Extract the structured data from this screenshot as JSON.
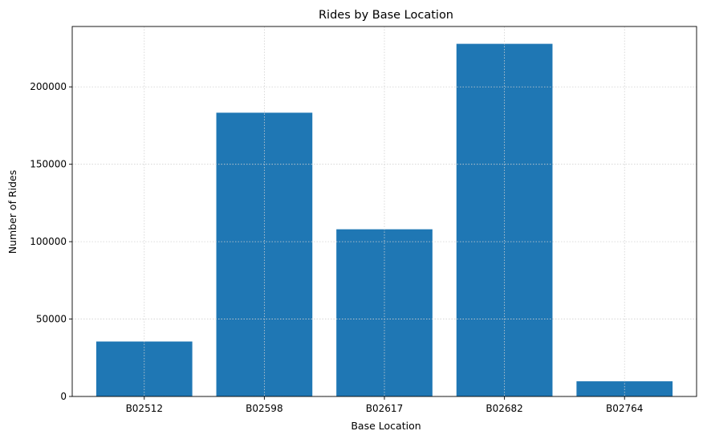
{
  "chart_data": {
    "type": "bar",
    "title": "Rides by Base Location",
    "xlabel": "Base Location",
    "ylabel": "Number of Rides",
    "categories": [
      "B02512",
      "B02598",
      "B02617",
      "B02682",
      "B02764"
    ],
    "values": [
      35500,
      183300,
      108000,
      227800,
      9800
    ],
    "ylim": [
      0,
      239000
    ],
    "yticks": [
      0,
      50000,
      100000,
      150000,
      200000
    ],
    "ytick_labels": [
      "0",
      "50000",
      "100000",
      "150000",
      "200000"
    ],
    "grid": true,
    "bar_color": "#1f77b4"
  }
}
